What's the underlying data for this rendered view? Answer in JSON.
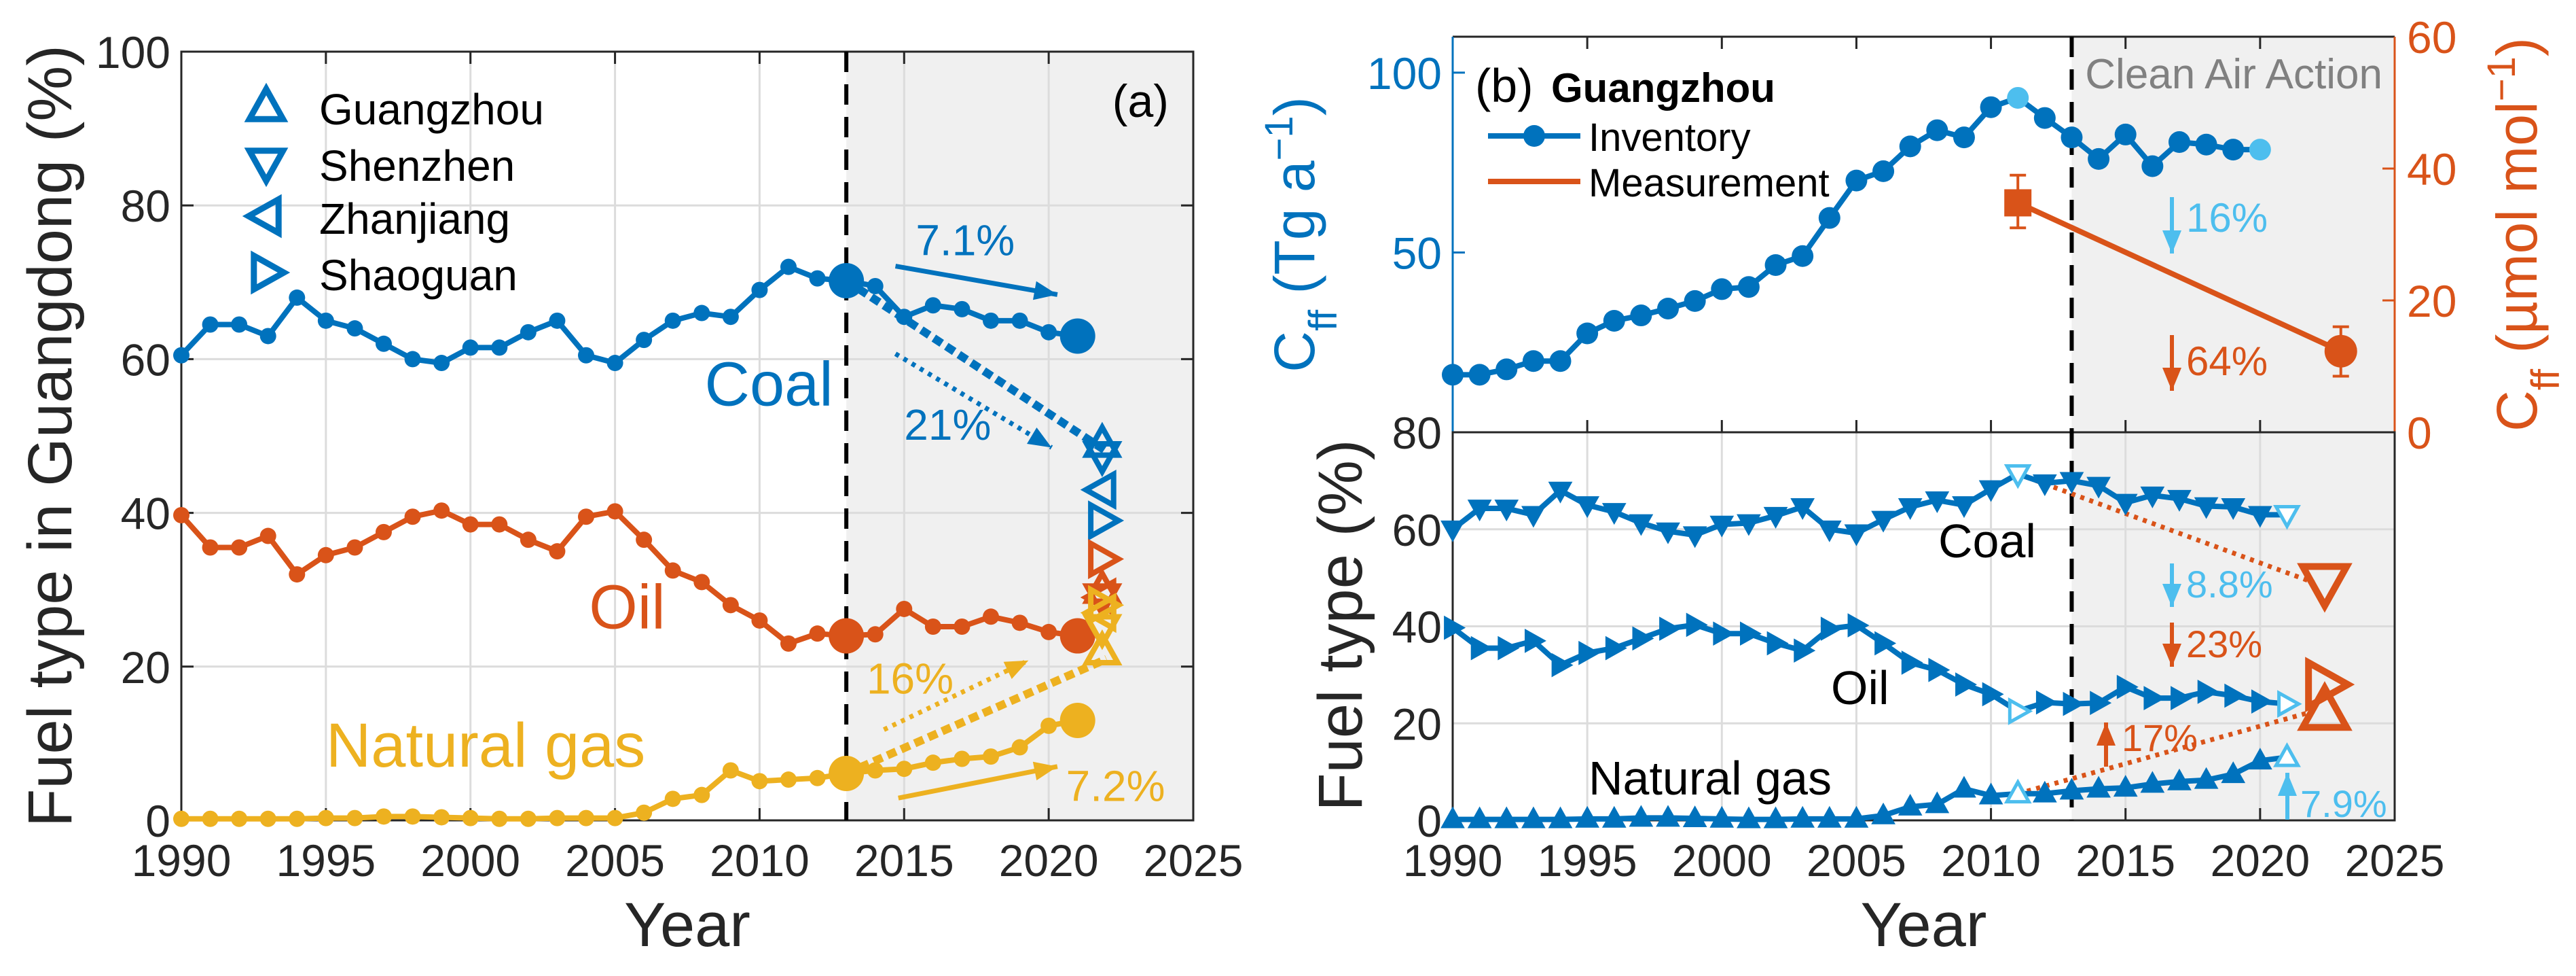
{
  "colors": {
    "coal": "#0072BD",
    "oil": "#D95319",
    "gas": "#EDB120",
    "highlight": "#4DBEEE",
    "shade": "#F0F0F0",
    "clean_air": "#808080"
  },
  "chart_data": [
    {
      "type": "line",
      "panel_label": "(a)",
      "xlabel": "Year",
      "ylabel": "Fuel type in Guangdong (%)",
      "xlim": [
        1990,
        2025
      ],
      "ylim": [
        0,
        100
      ],
      "xticks": [
        "1990",
        "1995",
        "2000",
        "2005",
        "2010",
        "2015",
        "2020",
        "2025"
      ],
      "yticks": [
        "0",
        "20",
        "40",
        "60",
        "80",
        "100"
      ],
      "grid": true,
      "shaded_period": [
        2013,
        2025
      ],
      "vertical_line": 2013,
      "legend": {
        "position": "top-left",
        "entries": [
          {
            "name": "Guangzhou",
            "marker": "triangle-up"
          },
          {
            "name": "Shenzhen",
            "marker": "triangle-down"
          },
          {
            "name": "Zhanjiang",
            "marker": "triangle-left"
          },
          {
            "name": "Shaoguan",
            "marker": "triangle-right"
          }
        ]
      },
      "x": [
        1990,
        1991,
        1992,
        1993,
        1994,
        1995,
        1996,
        1997,
        1998,
        1999,
        2000,
        2001,
        2002,
        2003,
        2004,
        2005,
        2006,
        2007,
        2008,
        2009,
        2010,
        2011,
        2012,
        2013,
        2014,
        2015,
        2016,
        2017,
        2018,
        2019,
        2020,
        2021
      ],
      "series": [
        {
          "label": "Coal",
          "color_key": "coal",
          "values": [
            60.5,
            64.5,
            64.5,
            63,
            68,
            65,
            64,
            62,
            60,
            59.5,
            61.5,
            61.5,
            63.5,
            65,
            60.5,
            59.5,
            62.5,
            65,
            66,
            65.5,
            69,
            72,
            70.5,
            70.2,
            69.5,
            65.5,
            67,
            66.5,
            65,
            65,
            63.5,
            63
          ]
        },
        {
          "label": "Oil",
          "color_key": "oil",
          "values": [
            39.7,
            35.5,
            35.5,
            37,
            32,
            34.5,
            35.5,
            37.5,
            39.5,
            40.3,
            38.5,
            38.5,
            36.5,
            35,
            39.5,
            40.2,
            36.5,
            32.5,
            31,
            28,
            26,
            23,
            24.3,
            24,
            24.2,
            27.5,
            25.2,
            25.2,
            26.5,
            25.7,
            24.5,
            24
          ]
        },
        {
          "label": "Natural gas",
          "color_key": "gas",
          "values": [
            0.2,
            0.2,
            0.2,
            0.2,
            0.2,
            0.3,
            0.3,
            0.5,
            0.5,
            0.4,
            0.3,
            0.2,
            0.2,
            0.3,
            0.3,
            0.3,
            1,
            2.8,
            3.3,
            6.5,
            5.1,
            5.3,
            5.5,
            6.1,
            6.5,
            6.7,
            7.5,
            8,
            8.3,
            9.5,
            12.3,
            13
          ]
        }
      ],
      "highlighted_years": [
        2013,
        2021
      ],
      "city_markers_2022": {
        "coal": {
          "Guangzhou": 49,
          "Shenzhen": 47.5,
          "Zhanjiang": 43,
          "Shaoguan": 39
        },
        "oil": {
          "Guangzhou": 30,
          "Shenzhen": 29,
          "Zhanjiang": 29,
          "Shaoguan": 34
        },
        "gas": {
          "Guangzhou": 22,
          "Shenzhen": 25,
          "Zhanjiang": 27,
          "Shaoguan": 28
        }
      },
      "annotations": [
        "7.1%",
        "21%",
        "16%",
        "7.2%"
      ]
    },
    {
      "type": "line",
      "panel_label": "(b)",
      "title": "Guangzhou",
      "ylabel_parts": [
        "C",
        "ff",
        " (Tg a",
        "−1",
        ")"
      ],
      "ylabel_right_parts": [
        "C",
        "ff",
        " (µmol mol",
        "−1",
        ")"
      ],
      "xlim": [
        1990,
        2025
      ],
      "ylim": [
        0,
        110
      ],
      "ylim_right": [
        0,
        60
      ],
      "yticks": [
        "50",
        "100"
      ],
      "yticks_right": [
        "0",
        "20",
        "40",
        "60"
      ],
      "grid": false,
      "shaded_period": [
        2013,
        2025
      ],
      "shaded_label": "Clean Air Action",
      "vertical_line": 2013,
      "legend": {
        "position": "top-left",
        "entries": [
          {
            "name": "Inventory",
            "marker": "circle-line"
          },
          {
            "name": "Measurement",
            "marker": "line"
          }
        ]
      },
      "inventory": {
        "x": [
          1990,
          1991,
          1992,
          1993,
          1994,
          1995,
          1996,
          1997,
          1998,
          1999,
          2000,
          2001,
          2002,
          2003,
          2004,
          2005,
          2006,
          2007,
          2008,
          2009,
          2010,
          2011,
          2012,
          2013,
          2014,
          2015,
          2016,
          2017,
          2018,
          2019,
          2020
        ],
        "values": [
          16,
          16,
          17.5,
          19.8,
          19.8,
          27.5,
          31,
          32.5,
          34.4,
          36.5,
          39.8,
          40.4,
          46.5,
          49,
          59.6,
          70,
          72.6,
          79.5,
          84,
          82,
          90.4,
          93,
          87.4,
          82,
          76,
          82.8,
          74,
          80.7,
          80,
          78.6,
          78.6
        ],
        "highlighted_years": [
          2011,
          2020
        ]
      },
      "measurement": {
        "x": [
          2011,
          2023
        ],
        "values": [
          34.8,
          12.3
        ],
        "error_low": [
          31,
          8.5
        ],
        "error_high": [
          39,
          16
        ]
      },
      "annotations": [
        "16%",
        "64%"
      ]
    },
    {
      "type": "line",
      "xlabel": "Year",
      "ylabel": "Fuel type (%)",
      "xlim": [
        1990,
        2025
      ],
      "ylim": [
        0,
        80
      ],
      "xticks": [
        "1990",
        "1995",
        "2000",
        "2005",
        "2010",
        "2015",
        "2020",
        "2025"
      ],
      "yticks": [
        "0",
        "20",
        "40",
        "60",
        "80"
      ],
      "grid": true,
      "x": [
        1990,
        1991,
        1992,
        1993,
        1994,
        1995,
        1996,
        1997,
        1998,
        1999,
        2000,
        2001,
        2002,
        2003,
        2004,
        2005,
        2006,
        2007,
        2008,
        2009,
        2010,
        2011,
        2012,
        2013,
        2014,
        2015,
        2016,
        2017,
        2018,
        2019,
        2020,
        2021
      ],
      "series": [
        {
          "label": "Coal",
          "marker": "triangle-down",
          "values": [
            60,
            64.3,
            64.3,
            63,
            68,
            65,
            63.6,
            61.3,
            59.6,
            58.8,
            61,
            61.3,
            62.8,
            64.6,
            60,
            59.2,
            62,
            64.6,
            66,
            65,
            68.3,
            71.4,
            69.5,
            70,
            69,
            65.5,
            67,
            66.3,
            64.8,
            64.6,
            63,
            63
          ]
        },
        {
          "label": "Oil",
          "marker": "triangle-right",
          "values": [
            39.7,
            35.5,
            35.5,
            37,
            32,
            34.5,
            35.5,
            37.5,
            39.5,
            40.3,
            38.5,
            38.5,
            36.5,
            35,
            39.5,
            40.2,
            36.5,
            32.5,
            31,
            28,
            26,
            22.5,
            24.3,
            24,
            24.2,
            27.5,
            25.2,
            25.2,
            26.5,
            25.7,
            24.5,
            24
          ]
        },
        {
          "label": "Natural gas",
          "marker": "triangle-up",
          "values": [
            0.2,
            0.2,
            0.2,
            0.2,
            0.2,
            0.3,
            0.3,
            0.5,
            0.5,
            0.4,
            0.3,
            0.2,
            0.2,
            0.3,
            0.3,
            0.3,
            1,
            2.8,
            3.3,
            6.5,
            5.1,
            5.5,
            5.5,
            6.1,
            6.5,
            6.7,
            7.5,
            8,
            8.3,
            9.5,
            12.3,
            13
          ]
        }
      ],
      "highlighted_years": [
        2011,
        2021
      ],
      "measurement_2022": {
        "coal": 49,
        "oil": 28,
        "gas": 22.5
      },
      "annotations": [
        "8.8%",
        "23%",
        "17%",
        "7.9%"
      ]
    }
  ]
}
